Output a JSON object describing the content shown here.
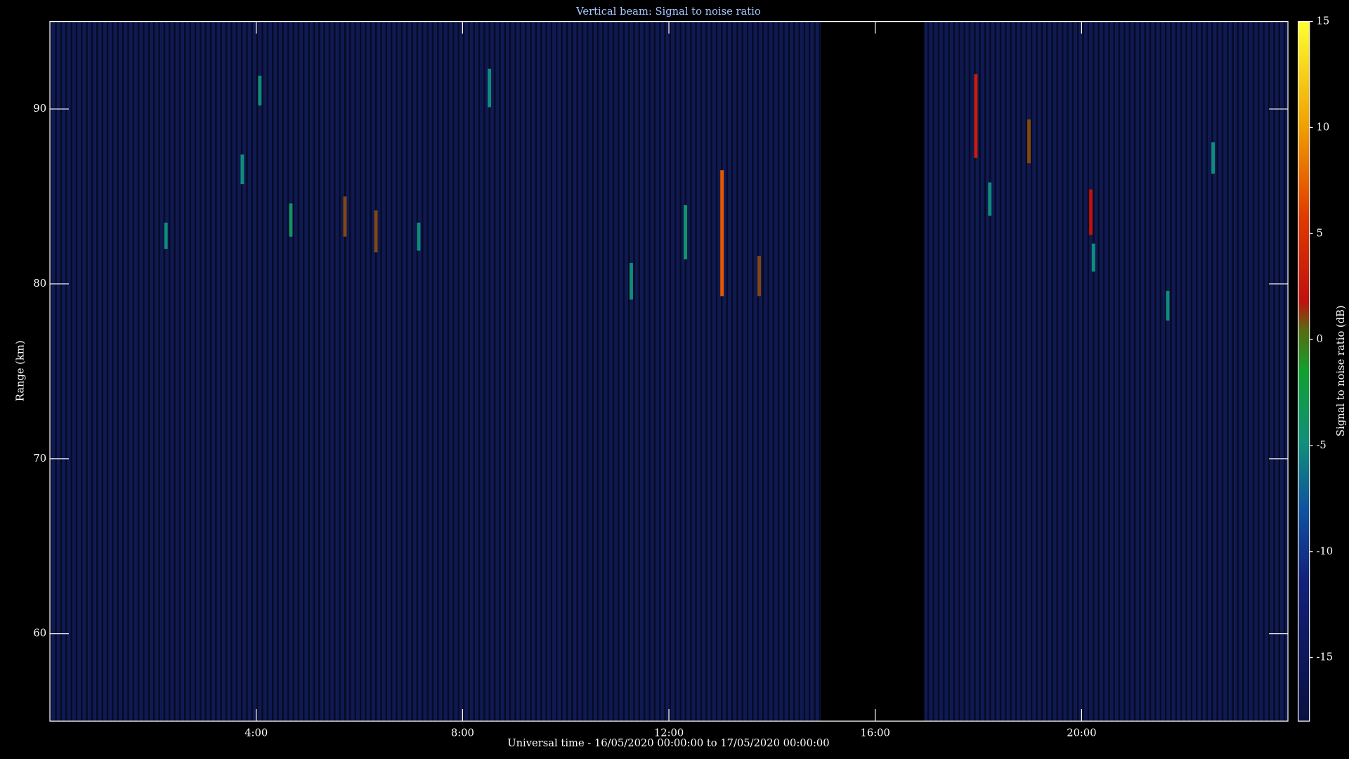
{
  "chart_data": {
    "type": "heatmap",
    "title": "Vertical beam: Signal to noise ratio",
    "xlabel": "Universal time - 16/05/2020 00:00:00 to 17/05/2020 00:00:00",
    "ylabel": "Range (km)",
    "colorbar_label": "Signal to noise ratio (dB)",
    "xlim": [
      0,
      24
    ],
    "xticks": [
      {
        "value": 4,
        "label": "4:00"
      },
      {
        "value": 8,
        "label": "8:00"
      },
      {
        "value": 12,
        "label": "12:00"
      },
      {
        "value": 16,
        "label": "16:00"
      },
      {
        "value": 20,
        "label": "20:00"
      }
    ],
    "ylim": [
      55,
      95
    ],
    "yticks": [
      60,
      70,
      80,
      90
    ],
    "clim": [
      -18,
      15
    ],
    "cticks": [
      -15,
      -10,
      -5,
      0,
      5,
      10,
      15
    ],
    "gaps": [
      [
        14.95,
        16.95
      ]
    ],
    "echoes": {
      "x": [
        2.25,
        3.73,
        4.07,
        4.67,
        5.72,
        6.32,
        7.15,
        8.52,
        11.27,
        12.32,
        13.03,
        13.75,
        17.95,
        18.22,
        18.98,
        20.18,
        20.23,
        21.67,
        22.55
      ],
      "y_low": [
        82.0,
        85.7,
        90.2,
        82.7,
        82.7,
        81.8,
        81.9,
        90.1,
        79.1,
        81.4,
        79.3,
        79.3,
        87.2,
        83.9,
        86.9,
        82.8,
        80.7,
        77.9,
        86.3
      ],
      "y_high": [
        83.5,
        87.4,
        91.9,
        84.6,
        85.0,
        84.2,
        83.5,
        92.3,
        81.2,
        84.5,
        86.5,
        81.6,
        92.0,
        85.8,
        89.4,
        85.4,
        82.3,
        79.6,
        88.1
      ],
      "values": [
        -5,
        -5,
        -5,
        -4,
        1,
        1,
        -5,
        -5,
        -5,
        -4,
        7,
        1,
        3,
        -5,
        1,
        2,
        -5,
        -5,
        -5
      ]
    }
  }
}
